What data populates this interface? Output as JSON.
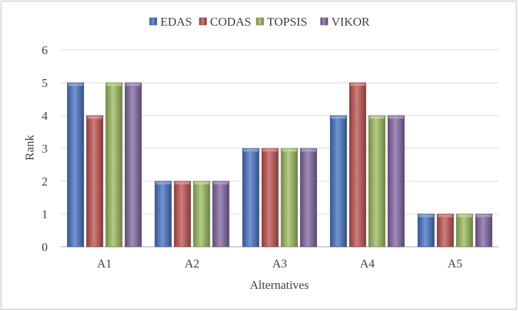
{
  "chart_data": {
    "type": "bar",
    "categories": [
      "A1",
      "A2",
      "A3",
      "A4",
      "A5"
    ],
    "series": [
      {
        "name": "EDAS",
        "values": [
          5,
          2,
          3,
          4,
          1
        ],
        "color": "#4472c4"
      },
      {
        "name": "CODAS",
        "values": [
          4,
          2,
          3,
          5,
          1
        ],
        "color": "#c0504d"
      },
      {
        "name": "TOPSIS",
        "values": [
          5,
          2,
          3,
          4,
          1
        ],
        "color": "#9bbb59"
      },
      {
        "name": "VIKOR",
        "values": [
          5,
          2,
          3,
          4,
          1
        ],
        "color": "#8064a2"
      }
    ],
    "title": "",
    "xlabel": "Alternatives",
    "ylabel": "Rank",
    "ylim": [
      0,
      6
    ],
    "yticks": [
      0,
      1,
      2,
      3,
      4,
      5,
      6
    ],
    "grid": true,
    "legend_position": "top"
  }
}
